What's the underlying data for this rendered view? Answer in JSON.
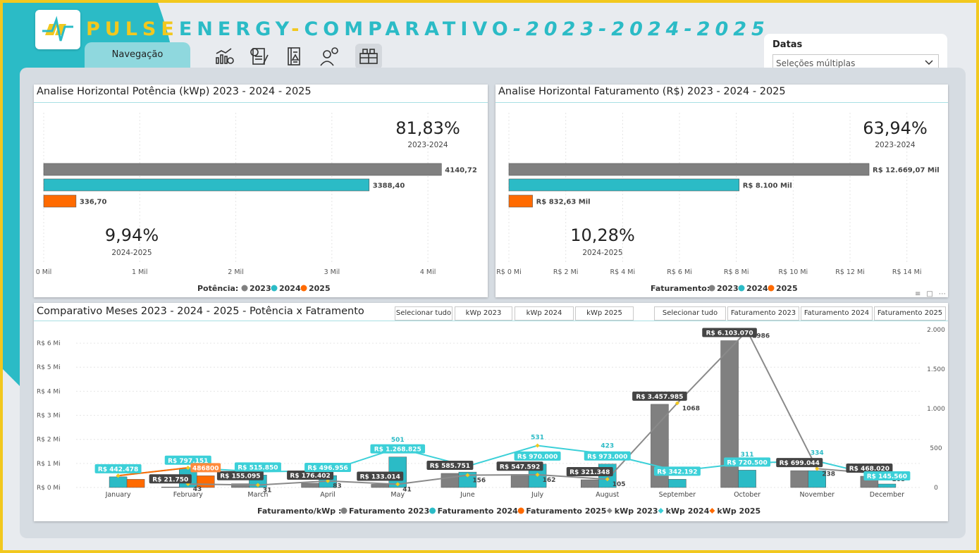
{
  "header": {
    "brand_part1": "PULSE",
    "brand_part2": "ENERGY",
    "dash": "-",
    "comparativo": "COMPARATIVO",
    "years": "-2023-2024-2025",
    "nav_label": "Navegação",
    "nav_icons": [
      "chart-gear-icon",
      "document-money-icon",
      "ledger-icon",
      "person-money-icon",
      "cash-register-icon"
    ]
  },
  "filter": {
    "label": "Datas",
    "value": "Seleções múltiplas"
  },
  "colors": {
    "y2023": "#808080",
    "y2024": "#2bbbc6",
    "y2025": "#ff6a00",
    "accent_yellow": "#f2c81e",
    "kwp_line_2023": "#8a8a8a",
    "kwp_line_2024": "#3cd0d8"
  },
  "potencia": {
    "title": "Analise Horizontal Potência (kWp) 2023 - 2024 - 2025",
    "kpi1_value": "81,83%",
    "kpi1_label": "2023-2024",
    "kpi2_value": "9,94%",
    "kpi2_label": "2024-2025",
    "legend_title": "Potência:",
    "legend": [
      "2023",
      "2024",
      "2025"
    ]
  },
  "faturamento": {
    "title": "Analise Horizontal Faturamento (R$) 2023 - 2024 - 2025",
    "kpi1_value": "63,94%",
    "kpi1_label": "2023-2024",
    "kpi2_value": "10,28%",
    "kpi2_label": "2024-2025",
    "legend_title": "Faturamento:",
    "legend": [
      "2023",
      "2024",
      "2025"
    ]
  },
  "meses": {
    "title": "Comparativo Meses 2023 - 2024 - 2025 - Potência x Fatramento",
    "buttons_kwp": [
      "Selecionar tudo",
      "kWp 2023",
      "kWp 2024",
      "kWp 2025"
    ],
    "buttons_fat": [
      "Selecionar tudo",
      "Faturamento 2023",
      "Faturamento 2024",
      "Faturamento 2025"
    ],
    "legend_title": "Faturamento/kWp :",
    "legend": [
      "Faturamento 2023",
      "Faturamento 2024",
      "Faturamento 2025",
      "kWp 2023",
      "kWp 2024",
      "kWp 2025"
    ]
  },
  "chart_data": [
    {
      "type": "bar",
      "orientation": "horizontal",
      "title": "Analise Horizontal Potência (kWp) 2023 - 2024 - 2025",
      "categories": [
        "2023",
        "2024",
        "2025"
      ],
      "values": [
        4140.72,
        3388.4,
        336.7
      ],
      "data_labels": [
        "4140,72",
        "3388,40",
        "336,70"
      ],
      "xlim": [
        0,
        4300
      ],
      "x_ticks": [
        0,
        1000,
        2000,
        3000,
        4000
      ],
      "x_tick_labels": [
        "0 Mil",
        "1 Mil",
        "2 Mil",
        "3 Mil",
        "4 Mil"
      ],
      "legend_position": "bottom",
      "grid": true
    },
    {
      "type": "bar",
      "orientation": "horizontal",
      "title": "Analise Horizontal Faturamento (R$) 2023 - 2024 - 2025",
      "categories": [
        "2023",
        "2024",
        "2025"
      ],
      "values": [
        12669.07,
        8100,
        832.63
      ],
      "data_labels": [
        "R$ 12.669,07 Mil",
        "R$ 8.100 Mil",
        "R$ 832,63 Mil"
      ],
      "xlim": [
        0,
        14900
      ],
      "x_ticks": [
        0,
        2000,
        4000,
        6000,
        8000,
        10000,
        12000,
        14000
      ],
      "x_tick_labels": [
        "R$ 0 Mi",
        "R$ 2 Mi",
        "R$ 4 Mi",
        "R$ 6 Mi",
        "R$ 8 Mi",
        "R$ 10 Mi",
        "R$ 12 Mi",
        "R$ 14 Mi"
      ],
      "legend_position": "bottom",
      "grid": true
    },
    {
      "type": "bar",
      "combo": "bar+line",
      "title": "Comparativo Meses 2023 - 2024 - 2025 - Potência x Fatramento",
      "categories": [
        "January",
        "February",
        "March",
        "April",
        "May",
        "June",
        "July",
        "August",
        "September",
        "October",
        "November",
        "December"
      ],
      "ylim_left": [
        0,
        6500000
      ],
      "y_left_ticks": [
        0,
        1000000,
        2000000,
        3000000,
        4000000,
        5000000,
        6000000
      ],
      "y_left_tick_labels": [
        "R$ 0 Mi",
        "R$ 1 Mi",
        "R$ 2 Mi",
        "R$ 3 Mi",
        "R$ 4 Mi",
        "R$ 5 Mi",
        "R$ 6 Mi"
      ],
      "ylim_right": [
        0,
        2000
      ],
      "y_right_ticks": [
        0,
        500,
        1000,
        1500,
        2000
      ],
      "y_right_tick_labels": [
        "0",
        "500",
        "1.000",
        "1.500",
        "2.000"
      ],
      "series": [
        {
          "name": "Faturamento 2023",
          "kind": "bar",
          "axis": "left",
          "color": "#808080",
          "values": [
            null,
            21750,
            155095,
            176402,
            133014,
            585751,
            547592,
            321348,
            3457985,
            6103070,
            699044,
            468020
          ],
          "labels": [
            "",
            "R$ 21.750",
            "R$ 155.095",
            "R$ 176.402",
            "R$ 133.014",
            "R$ 585.751",
            "R$ 547.592",
            "R$ 321.348",
            "R$ 3.457.985",
            "R$ 6.103.070",
            "R$ 699.044",
            "R$ 468.020"
          ]
        },
        {
          "name": "Faturamento 2024",
          "kind": "bar",
          "axis": "left",
          "color": "#2bbbc6",
          "values": [
            442478,
            797151,
            515850,
            496956,
            1268825,
            640000,
            970000,
            973000,
            342192,
            720500,
            699044,
            145560
          ],
          "labels": [
            "R$ 442.478",
            "R$ 797.151",
            "R$ 515.850",
            "R$ 496.956",
            "R$ 1.268.825",
            "",
            "R$ 970.000",
            "R$ 973.000",
            "R$ 342.192",
            "R$ 720.500",
            "",
            "R$ 145.560"
          ]
        },
        {
          "name": "Faturamento 2025",
          "kind": "bar",
          "axis": "left",
          "color": "#ff6a00",
          "values": [
            340000,
            486800,
            null,
            null,
            null,
            null,
            null,
            null,
            null,
            null,
            null,
            null
          ],
          "labels": [
            "",
            "486800",
            "",
            "",
            "",
            "",
            "",
            "",
            "",
            "",
            "",
            ""
          ]
        },
        {
          "name": "kWp 2023",
          "kind": "line",
          "axis": "right",
          "color": "#8a8a8a",
          "values": [
            null,
            43,
            31,
            83,
            41,
            156,
            162,
            105,
            1068,
            1986,
            238,
            168
          ],
          "labels": [
            "",
            "43",
            "31",
            "83",
            "41",
            "156",
            "162",
            "105",
            "1068",
            "1986",
            "238",
            "168"
          ]
        },
        {
          "name": "kWp 2024",
          "kind": "line",
          "axis": "right",
          "color": "#3cd0d8",
          "values": [
            150,
            250,
            200,
            210,
            501,
            270,
            531,
            423,
            210,
            311,
            334,
            120
          ],
          "labels": [
            "",
            "",
            "",
            "",
            "501",
            "",
            "531",
            "423",
            "",
            "311",
            "334",
            ""
          ]
        },
        {
          "name": "kWp 2025",
          "kind": "line",
          "axis": "right",
          "color": "#ff6a00",
          "values": [
            150,
            250,
            null,
            null,
            null,
            null,
            null,
            null,
            null,
            null,
            null,
            null
          ],
          "labels": [
            "",
            "",
            "",
            "",
            "",
            "",
            "",
            "",
            "",
            "",
            "",
            ""
          ]
        }
      ],
      "legend_position": "bottom",
      "grid": true
    }
  ]
}
